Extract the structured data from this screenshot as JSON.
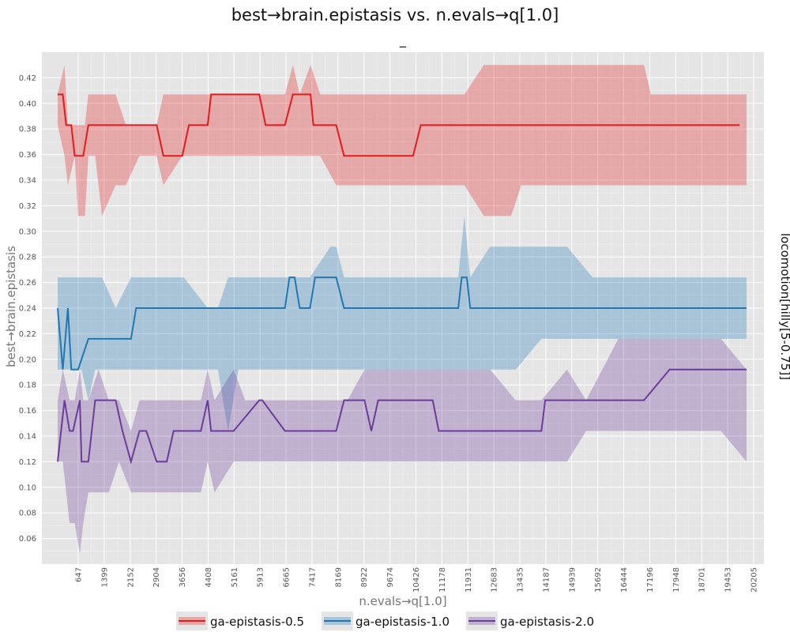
{
  "chart_data": {
    "type": "line",
    "title": "best→brain.epistasis vs. n.evals→q[1.0]",
    "subtitle": "_",
    "xlabel": "n.evals→q[1.0]",
    "ylabel": "best→brain.epistasis",
    "facet_label": "locomotion[hilly[5-0.75]]",
    "xlim": [
      -1000,
      20700
    ],
    "ylim": [
      0.04,
      0.44
    ],
    "grid": true,
    "legend_position": "bottom",
    "x_ticks": [
      "647",
      "1399",
      "2152",
      "2904",
      "3656",
      "4408",
      "5161",
      "5913",
      "6665",
      "7417",
      "8169",
      "8922",
      "9674",
      "10426",
      "11178",
      "11931",
      "12683",
      "13435",
      "14187",
      "14939",
      "15692",
      "16444",
      "17196",
      "17948",
      "18701",
      "19453",
      "20205"
    ],
    "y_ticks": [
      "0.06",
      "0.08",
      "0.10",
      "0.12",
      "0.14",
      "0.16",
      "0.18",
      "0.20",
      "0.22",
      "0.24",
      "0.26",
      "0.28",
      "0.30",
      "0.32",
      "0.34",
      "0.36",
      "0.38",
      "0.40",
      "0.42"
    ],
    "series": [
      {
        "name": "ga-epistasis-0.5",
        "color": "#e41a1c",
        "x": [
          0,
          150,
          250,
          400,
          500,
          600,
          750,
          900,
          1000,
          1400,
          2000,
          2904,
          3100,
          3656,
          3850,
          4400,
          4500,
          5000,
          5913,
          6100,
          6665,
          6900,
          7000,
          7417,
          7500,
          8000,
          8169,
          8400,
          9000,
          10000,
          10426,
          10650,
          11000,
          12000,
          13000,
          14000,
          15000,
          16000,
          17000,
          18000,
          19000,
          20000
        ],
        "y": [
          0.407,
          0.407,
          0.383,
          0.383,
          0.359,
          0.359,
          0.359,
          0.383,
          0.383,
          0.383,
          0.383,
          0.383,
          0.359,
          0.359,
          0.383,
          0.383,
          0.407,
          0.407,
          0.407,
          0.383,
          0.383,
          0.407,
          0.407,
          0.407,
          0.383,
          0.383,
          0.383,
          0.359,
          0.359,
          0.359,
          0.359,
          0.383,
          0.383,
          0.383,
          0.383,
          0.383,
          0.383,
          0.383,
          0.383,
          0.383,
          0.383,
          0.383
        ],
        "band_x": [
          0,
          200,
          300,
          500,
          600,
          800,
          900,
          1100,
          1300,
          1700,
          2000,
          2400,
          2904,
          3100,
          3656,
          3850,
          4500,
          5913,
          6665,
          6900,
          7100,
          7417,
          7700,
          8169,
          9000,
          11931,
          12500,
          13300,
          13600,
          15000,
          16000,
          17196,
          17400,
          18000,
          19453,
          20205
        ],
        "band_lo": [
          0.383,
          0.359,
          0.336,
          0.359,
          0.312,
          0.312,
          0.359,
          0.359,
          0.312,
          0.336,
          0.336,
          0.359,
          0.359,
          0.336,
          0.359,
          0.359,
          0.359,
          0.359,
          0.359,
          0.359,
          0.359,
          0.359,
          0.359,
          0.336,
          0.336,
          0.336,
          0.312,
          0.312,
          0.336,
          0.336,
          0.336,
          0.336,
          0.336,
          0.336,
          0.336,
          0.336
        ],
        "band_hi": [
          0.407,
          0.43,
          0.383,
          0.383,
          0.383,
          0.383,
          0.407,
          0.407,
          0.407,
          0.407,
          0.383,
          0.383,
          0.383,
          0.407,
          0.407,
          0.407,
          0.407,
          0.407,
          0.407,
          0.43,
          0.407,
          0.43,
          0.407,
          0.407,
          0.407,
          0.407,
          0.43,
          0.43,
          0.43,
          0.43,
          0.43,
          0.43,
          0.407,
          0.407,
          0.407,
          0.407
        ]
      },
      {
        "name": "ga-epistasis-1.0",
        "color": "#1f78b4",
        "x": [
          0,
          150,
          300,
          400,
          600,
          900,
          1000,
          1399,
          2000,
          2152,
          2300,
          2904,
          3656,
          4408,
          5161,
          5913,
          6665,
          6800,
          6950,
          7100,
          7400,
          7550,
          8000,
          8169,
          8400,
          9000,
          10000,
          11000,
          11750,
          11850,
          12000,
          12100,
          12683,
          13435,
          14187,
          14939,
          15692,
          16444,
          17196,
          17948,
          18701,
          19453,
          20205
        ],
        "y": [
          0.24,
          0.192,
          0.24,
          0.192,
          0.192,
          0.216,
          0.216,
          0.216,
          0.216,
          0.216,
          0.24,
          0.24,
          0.24,
          0.24,
          0.24,
          0.24,
          0.24,
          0.264,
          0.264,
          0.24,
          0.24,
          0.264,
          0.264,
          0.264,
          0.24,
          0.24,
          0.24,
          0.24,
          0.24,
          0.264,
          0.264,
          0.24,
          0.24,
          0.24,
          0.24,
          0.24,
          0.24,
          0.24,
          0.24,
          0.24,
          0.24,
          0.24,
          0.24
        ],
        "band_x": [
          0,
          200,
          350,
          500,
          700,
          900,
          1100,
          1300,
          1700,
          2152,
          2300,
          2904,
          3700,
          4400,
          4700,
          5000,
          5300,
          6665,
          6950,
          7200,
          7400,
          8000,
          8169,
          8400,
          11750,
          11931,
          12100,
          12683,
          13435,
          14187,
          14939,
          15692,
          16444,
          17196,
          17948,
          18701,
          19453,
          20205
        ],
        "band_lo": [
          0.192,
          0.192,
          0.192,
          0.192,
          0.192,
          0.168,
          0.192,
          0.192,
          0.192,
          0.192,
          0.192,
          0.192,
          0.192,
          0.192,
          0.192,
          0.144,
          0.192,
          0.192,
          0.192,
          0.192,
          0.192,
          0.192,
          0.192,
          0.192,
          0.192,
          0.192,
          0.192,
          0.192,
          0.192,
          0.216,
          0.216,
          0.216,
          0.216,
          0.216,
          0.216,
          0.216,
          0.216,
          0.216
        ],
        "band_hi": [
          0.264,
          0.264,
          0.264,
          0.264,
          0.264,
          0.264,
          0.264,
          0.264,
          0.24,
          0.264,
          0.264,
          0.264,
          0.264,
          0.24,
          0.24,
          0.264,
          0.264,
          0.264,
          0.264,
          0.264,
          0.264,
          0.288,
          0.288,
          0.264,
          0.264,
          0.312,
          0.264,
          0.288,
          0.288,
          0.288,
          0.288,
          0.264,
          0.264,
          0.264,
          0.264,
          0.264,
          0.264,
          0.264
        ]
      },
      {
        "name": "ga-epistasis-2.0",
        "color": "#6a3d9a",
        "x": [
          0,
          200,
          350,
          450,
          650,
          700,
          900,
          1100,
          1700,
          1900,
          2150,
          2400,
          2600,
          2904,
          3200,
          3400,
          3656,
          4200,
          4400,
          4500,
          5161,
          5913,
          6000,
          6665,
          8169,
          8400,
          9000,
          9200,
          9400,
          10000,
          11000,
          11178,
          11931,
          12683,
          13435,
          14187,
          14300,
          14939,
          15692,
          16444,
          17196,
          17948,
          18701,
          19453,
          20205
        ],
        "y": [
          0.12,
          0.168,
          0.144,
          0.144,
          0.168,
          0.12,
          0.12,
          0.168,
          0.168,
          0.144,
          0.12,
          0.144,
          0.144,
          0.12,
          0.12,
          0.144,
          0.144,
          0.144,
          0.168,
          0.144,
          0.144,
          0.168,
          0.168,
          0.144,
          0.144,
          0.168,
          0.168,
          0.144,
          0.168,
          0.168,
          0.168,
          0.144,
          0.144,
          0.144,
          0.144,
          0.144,
          0.168,
          0.168,
          0.168,
          0.168,
          0.168,
          0.192,
          0.192,
          0.192,
          0.192
        ],
        "band_x": [
          0,
          150,
          350,
          500,
          650,
          750,
          900,
          1200,
          1500,
          1800,
          2152,
          2400,
          2904,
          3300,
          4200,
          4400,
          4600,
          5161,
          5500,
          6000,
          6665,
          7000,
          8169,
          8500,
          9000,
          9500,
          10426,
          11178,
          11931,
          12683,
          13435,
          14187,
          14939,
          15500,
          16444,
          17196,
          17948,
          18701,
          19453,
          20205
        ],
        "band_lo": [
          0.12,
          0.12,
          0.072,
          0.072,
          0.048,
          0.072,
          0.096,
          0.096,
          0.096,
          0.12,
          0.096,
          0.096,
          0.096,
          0.096,
          0.096,
          0.12,
          0.096,
          0.12,
          0.12,
          0.12,
          0.12,
          0.12,
          0.12,
          0.12,
          0.12,
          0.12,
          0.12,
          0.12,
          0.12,
          0.12,
          0.12,
          0.12,
          0.12,
          0.144,
          0.144,
          0.144,
          0.144,
          0.144,
          0.144,
          0.12
        ],
        "band_hi": [
          0.168,
          0.192,
          0.168,
          0.168,
          0.192,
          0.168,
          0.168,
          0.192,
          0.168,
          0.168,
          0.144,
          0.168,
          0.168,
          0.168,
          0.168,
          0.192,
          0.168,
          0.192,
          0.168,
          0.168,
          0.168,
          0.168,
          0.168,
          0.168,
          0.192,
          0.192,
          0.192,
          0.192,
          0.192,
          0.192,
          0.168,
          0.168,
          0.192,
          0.168,
          0.216,
          0.216,
          0.216,
          0.216,
          0.216,
          0.192
        ]
      }
    ]
  }
}
